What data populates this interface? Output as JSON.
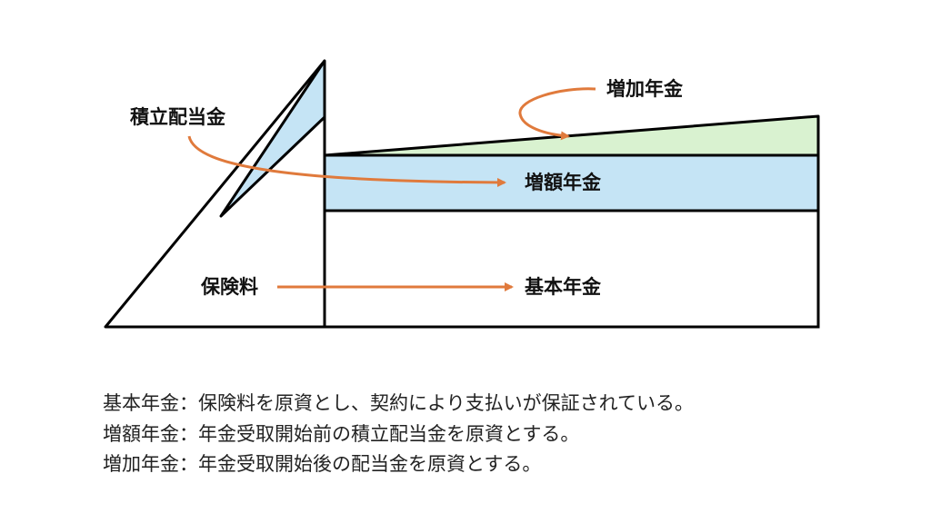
{
  "diagram": {
    "labels": {
      "accumulated_dividend": "積立配当金",
      "increase_pension": "増加年金",
      "increment_pension": "増額年金",
      "premium": "保険料",
      "basic_pension": "基本年金"
    },
    "colors": {
      "line": "#000000",
      "arrow": "#E07A3C",
      "blue_fill": "#C5E4F5",
      "green_fill": "#D9F2D0"
    }
  },
  "notes": [
    "基本年金：保険料を原資とし、契約により支払いが保証されている。",
    "増額年金：年金受取開始前の積立配当金を原資とする。",
    "増加年金：年金受取開始後の配当金を原資とする。"
  ]
}
